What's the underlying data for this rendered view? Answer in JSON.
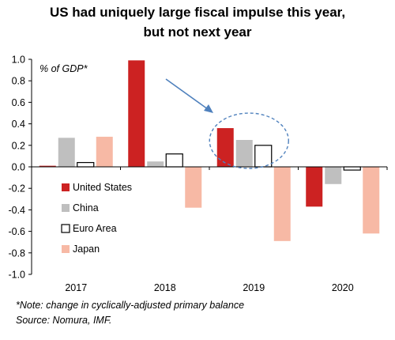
{
  "title_line1": "US had uniquely large fiscal impulse this year,",
  "title_line2": "but not next year",
  "footnote": "*Note: change in cyclically-adjusted primary balance",
  "source": "Source: Nomura, IMF.",
  "chart_data": {
    "type": "bar",
    "categories": [
      "2017",
      "2018",
      "2019",
      "2020"
    ],
    "series": [
      {
        "name": "United States",
        "color": "#cc2222",
        "values": [
          0.01,
          0.99,
          0.36,
          -0.37
        ]
      },
      {
        "name": "China",
        "color": "#bfbfbf",
        "values": [
          0.27,
          0.05,
          0.25,
          -0.16
        ]
      },
      {
        "name": "Euro Area",
        "color": "#ffffff",
        "stroke": "#000000",
        "values": [
          0.04,
          0.12,
          0.2,
          -0.03
        ]
      },
      {
        "name": "Japan",
        "color": "#f7b9a5",
        "values": [
          0.28,
          -0.38,
          -0.69,
          -0.62
        ]
      }
    ],
    "ylabel": "% of GDP*",
    "ylim": [
      -1.0,
      1.0
    ],
    "yticks": [
      "-1.0",
      "-0.8",
      "-0.6",
      "-0.4",
      "-0.2",
      "0.0",
      "0.2",
      "0.4",
      "0.6",
      "0.8",
      "1.0"
    ],
    "grid": false,
    "legend_position": "left, below zero line",
    "annotation": {
      "type": "arrow and dashed ellipse",
      "highlight_category": "2019",
      "color": "#4f81bd"
    }
  }
}
